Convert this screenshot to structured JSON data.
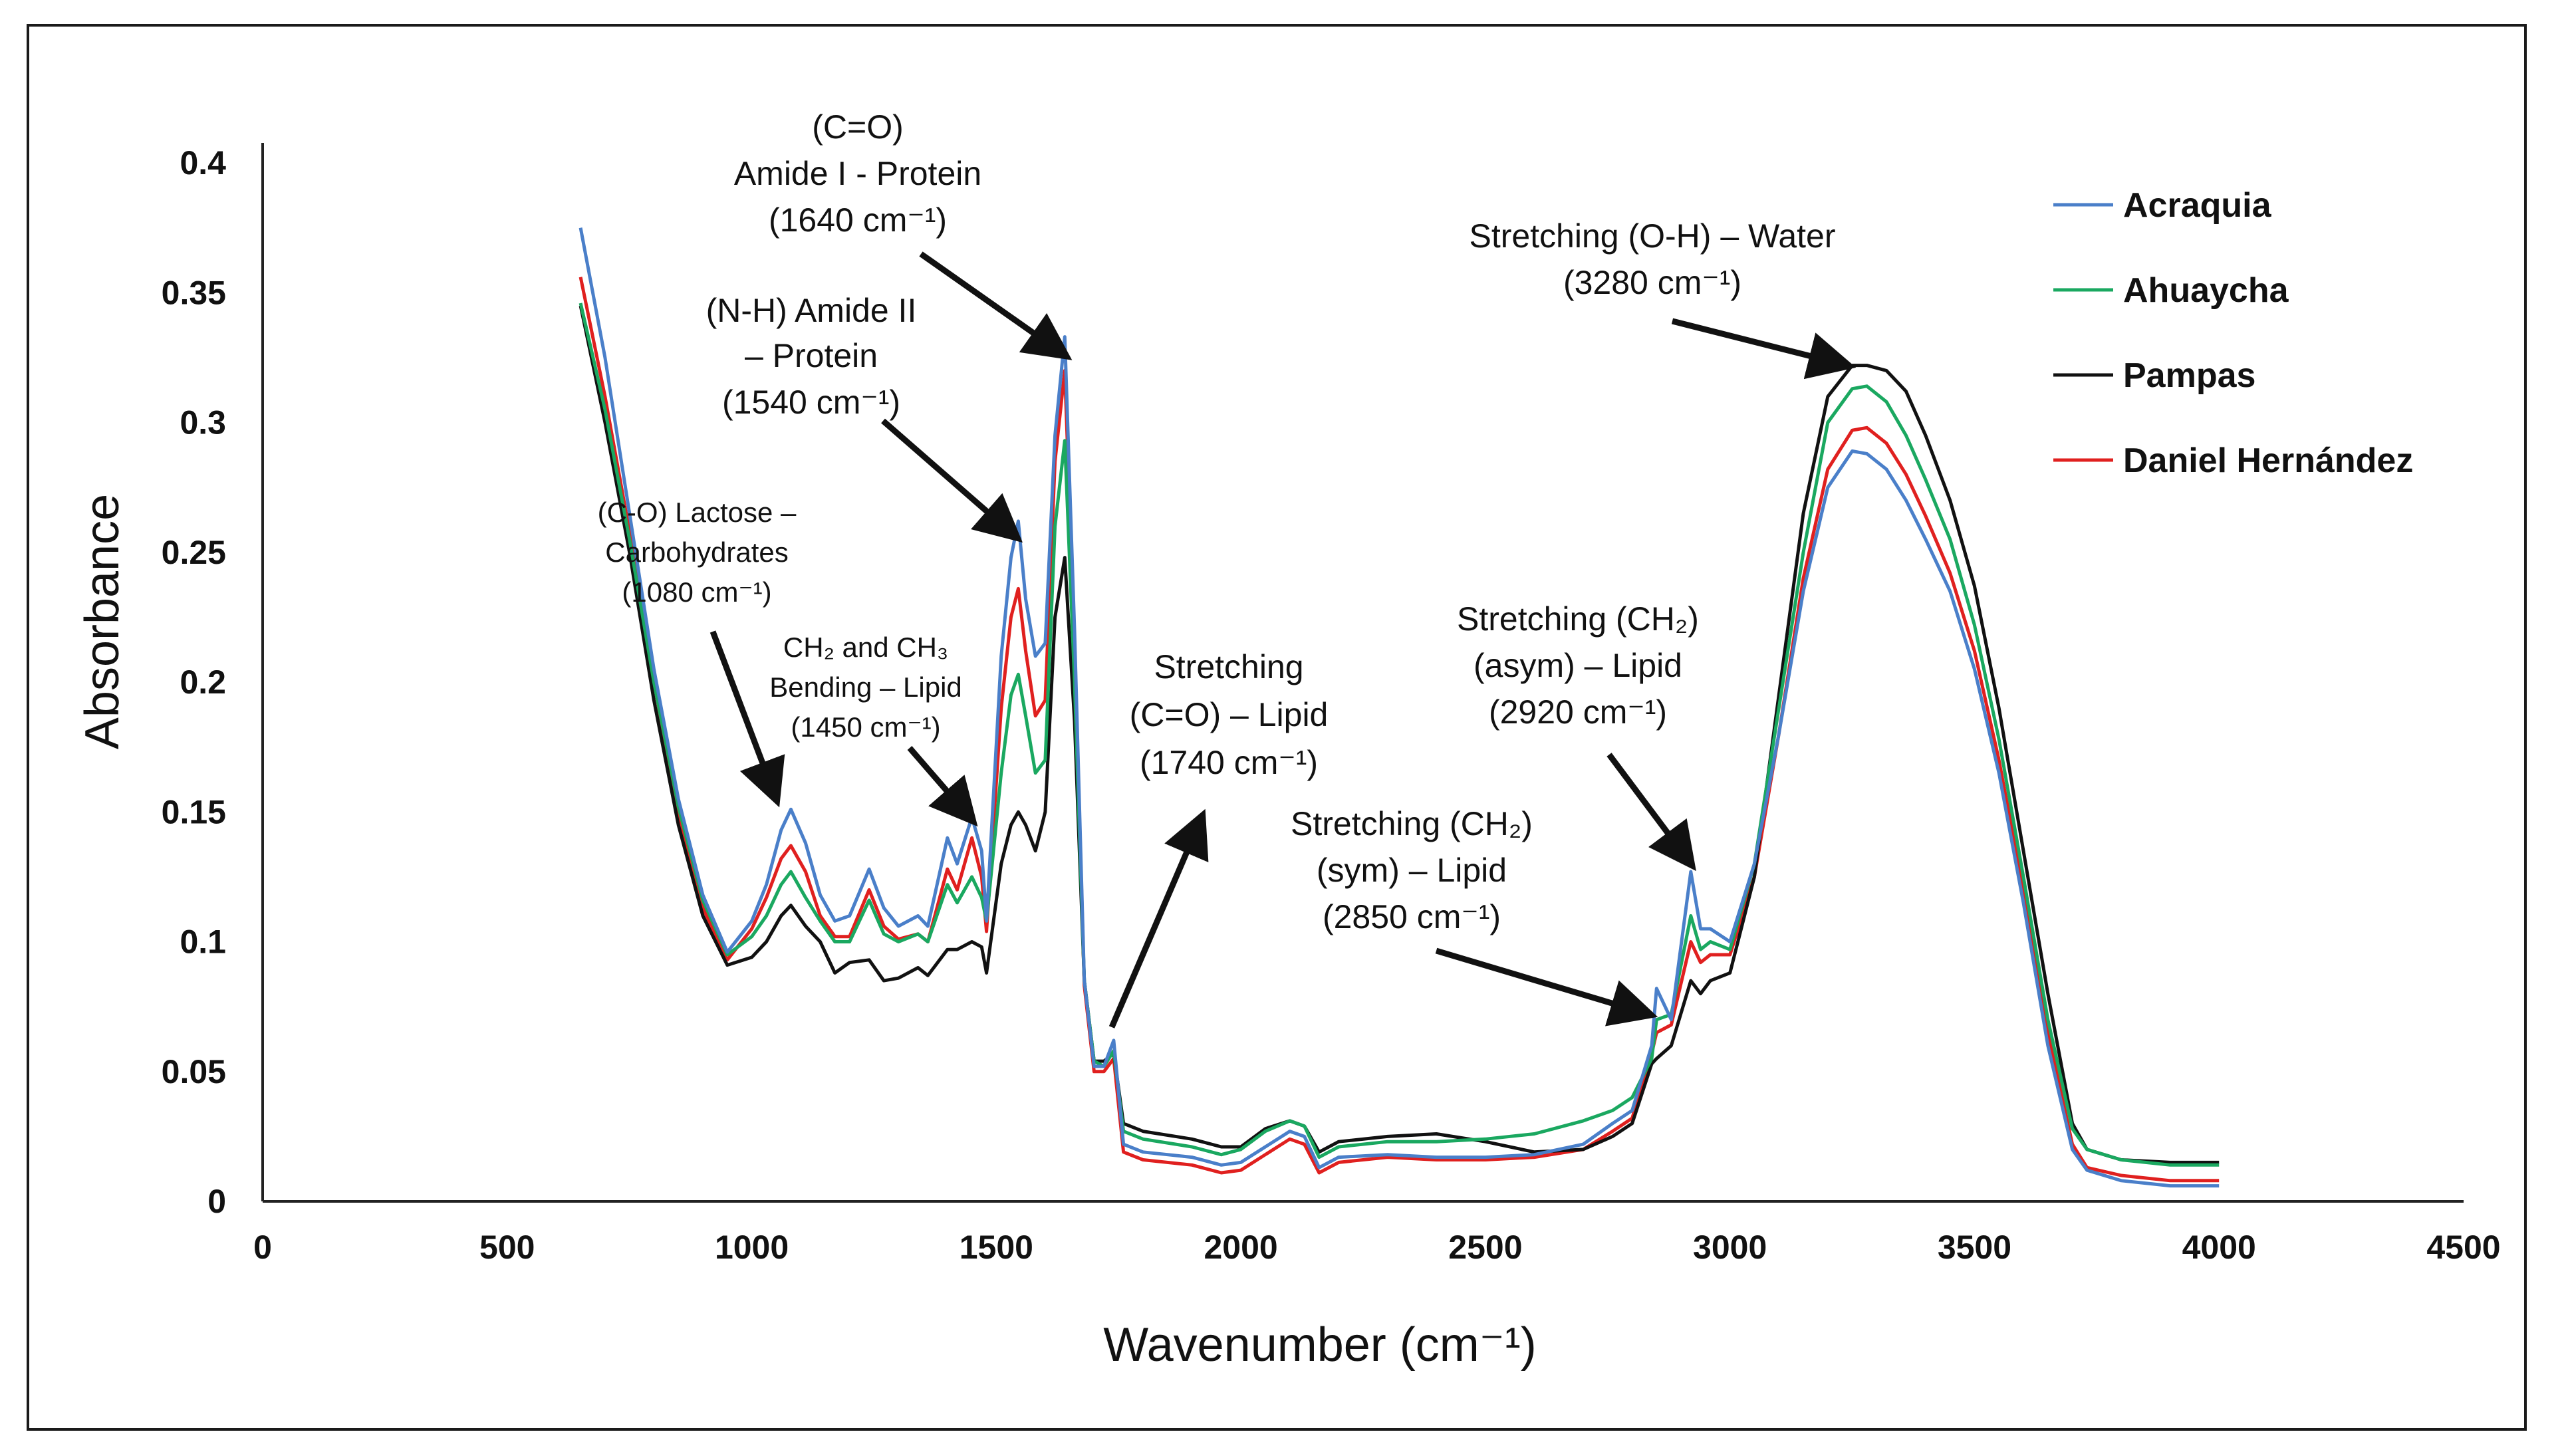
{
  "chart_data": {
    "type": "line",
    "title": "",
    "xlabel": "Wavenumber  (cm⁻¹)",
    "ylabel": "Absorbance",
    "xlim": [
      0,
      4500
    ],
    "ylim": [
      0,
      0.4
    ],
    "x_ticks": [
      "0",
      "500",
      "1000",
      "1500",
      "2000",
      "2500",
      "3000",
      "3500",
      "4000",
      "4500"
    ],
    "y_ticks": [
      "0",
      "0.05",
      "0.1",
      "0.15",
      "0.2",
      "0.25",
      "0.3",
      "0.35",
      "0.4"
    ],
    "grid": false,
    "legend_position": "top-right",
    "x": [
      650,
      700,
      750,
      800,
      850,
      900,
      950,
      1000,
      1030,
      1060,
      1080,
      1110,
      1140,
      1170,
      1200,
      1240,
      1270,
      1300,
      1340,
      1360,
      1400,
      1420,
      1450,
      1470,
      1480,
      1510,
      1530,
      1545,
      1560,
      1580,
      1600,
      1620,
      1640,
      1660,
      1680,
      1700,
      1720,
      1740,
      1760,
      1800,
      1900,
      1960,
      2000,
      2050,
      2100,
      2130,
      2160,
      2200,
      2300,
      2400,
      2500,
      2600,
      2700,
      2760,
      2800,
      2840,
      2850,
      2880,
      2920,
      2940,
      2960,
      3000,
      3050,
      3100,
      3150,
      3200,
      3250,
      3280,
      3320,
      3360,
      3400,
      3450,
      3500,
      3550,
      3600,
      3650,
      3700,
      3730,
      3800,
      3900,
      4000
    ],
    "series": [
      {
        "name": "Acraquia",
        "color": "#4a7fc9",
        "values": [
          0.375,
          0.325,
          0.265,
          0.205,
          0.155,
          0.118,
          0.096,
          0.108,
          0.122,
          0.143,
          0.151,
          0.138,
          0.118,
          0.108,
          0.11,
          0.128,
          0.113,
          0.106,
          0.11,
          0.106,
          0.14,
          0.13,
          0.148,
          0.135,
          0.108,
          0.21,
          0.248,
          0.262,
          0.232,
          0.21,
          0.215,
          0.295,
          0.333,
          0.22,
          0.085,
          0.052,
          0.052,
          0.062,
          0.022,
          0.019,
          0.017,
          0.014,
          0.015,
          0.021,
          0.027,
          0.025,
          0.013,
          0.017,
          0.018,
          0.017,
          0.017,
          0.018,
          0.022,
          0.03,
          0.035,
          0.06,
          0.082,
          0.07,
          0.127,
          0.105,
          0.105,
          0.1,
          0.13,
          0.18,
          0.235,
          0.275,
          0.289,
          0.288,
          0.282,
          0.27,
          0.255,
          0.235,
          0.205,
          0.165,
          0.115,
          0.06,
          0.02,
          0.012,
          0.008,
          0.006,
          0.006
        ]
      },
      {
        "name": "Ahuaycha",
        "color": "#1aa860",
        "values": [
          0.346,
          0.305,
          0.255,
          0.2,
          0.152,
          0.116,
          0.095,
          0.102,
          0.11,
          0.122,
          0.127,
          0.117,
          0.108,
          0.1,
          0.1,
          0.116,
          0.103,
          0.1,
          0.103,
          0.1,
          0.122,
          0.115,
          0.125,
          0.117,
          0.108,
          0.165,
          0.195,
          0.203,
          0.187,
          0.165,
          0.17,
          0.26,
          0.293,
          0.2,
          0.085,
          0.054,
          0.052,
          0.058,
          0.027,
          0.024,
          0.021,
          0.018,
          0.02,
          0.027,
          0.031,
          0.029,
          0.017,
          0.021,
          0.023,
          0.023,
          0.024,
          0.026,
          0.031,
          0.035,
          0.04,
          0.055,
          0.07,
          0.072,
          0.11,
          0.097,
          0.1,
          0.097,
          0.13,
          0.19,
          0.25,
          0.3,
          0.313,
          0.314,
          0.308,
          0.295,
          0.278,
          0.255,
          0.222,
          0.178,
          0.125,
          0.07,
          0.028,
          0.02,
          0.016,
          0.014,
          0.014
        ]
      },
      {
        "name": "Pampas",
        "color": "#111111",
        "values": [
          0.345,
          0.3,
          0.25,
          0.193,
          0.145,
          0.11,
          0.091,
          0.094,
          0.1,
          0.11,
          0.114,
          0.106,
          0.1,
          0.088,
          0.092,
          0.093,
          0.085,
          0.086,
          0.09,
          0.087,
          0.097,
          0.097,
          0.1,
          0.098,
          0.088,
          0.13,
          0.145,
          0.15,
          0.145,
          0.135,
          0.15,
          0.225,
          0.248,
          0.185,
          0.085,
          0.054,
          0.054,
          0.057,
          0.03,
          0.027,
          0.024,
          0.021,
          0.021,
          0.028,
          0.031,
          0.029,
          0.019,
          0.023,
          0.025,
          0.026,
          0.023,
          0.019,
          0.02,
          0.025,
          0.03,
          0.053,
          0.055,
          0.06,
          0.085,
          0.08,
          0.085,
          0.088,
          0.125,
          0.195,
          0.265,
          0.31,
          0.322,
          0.322,
          0.32,
          0.312,
          0.295,
          0.27,
          0.237,
          0.19,
          0.135,
          0.08,
          0.03,
          0.02,
          0.016,
          0.015,
          0.015
        ]
      },
      {
        "name": "Daniel Hernández",
        "color": "#e0201f",
        "values": [
          0.356,
          0.31,
          0.258,
          0.2,
          0.15,
          0.113,
          0.093,
          0.105,
          0.117,
          0.132,
          0.137,
          0.127,
          0.11,
          0.102,
          0.102,
          0.12,
          0.106,
          0.101,
          0.103,
          0.1,
          0.128,
          0.12,
          0.14,
          0.125,
          0.104,
          0.19,
          0.225,
          0.236,
          0.212,
          0.187,
          0.193,
          0.285,
          0.32,
          0.215,
          0.083,
          0.05,
          0.05,
          0.055,
          0.019,
          0.016,
          0.014,
          0.011,
          0.012,
          0.018,
          0.024,
          0.022,
          0.011,
          0.015,
          0.017,
          0.016,
          0.016,
          0.017,
          0.02,
          0.027,
          0.032,
          0.057,
          0.065,
          0.068,
          0.1,
          0.092,
          0.095,
          0.095,
          0.125,
          0.18,
          0.24,
          0.282,
          0.297,
          0.298,
          0.292,
          0.28,
          0.264,
          0.242,
          0.212,
          0.17,
          0.12,
          0.065,
          0.022,
          0.013,
          0.01,
          0.008,
          0.008
        ]
      }
    ],
    "annotations": [
      {
        "id": "a1640",
        "lines": [
          "(C=O)",
          "Amide I -  Protein",
          "(1640 cm⁻¹)"
        ],
        "target_x": 1640,
        "target_y": 0.326
      },
      {
        "id": "a1540",
        "lines": [
          "(N-H) Amide II",
          "– Protein",
          "(1540 cm⁻¹)"
        ],
        "target_x": 1540,
        "target_y": 0.256
      },
      {
        "id": "a1080",
        "lines": [
          "(C-O) Lactose –",
          "Carbohydrates",
          "(1080 cm⁻¹)"
        ],
        "target_x": 1050,
        "target_y": 0.155
      },
      {
        "id": "a1450",
        "lines": [
          "CH₂ and CH₃",
          "Bending – Lipid",
          "(1450 cm⁻¹)"
        ],
        "target_x": 1450,
        "target_y": 0.147
      },
      {
        "id": "a1740",
        "lines": [
          "Stretching",
          "(C=O) – Lipid",
          "(1740 cm⁻¹)"
        ],
        "target_x": 1920,
        "target_y": 0.148
      },
      {
        "id": "a2850",
        "lines": [
          "Stretching (CH₂)",
          "(sym) – Lipid",
          "(2850 cm⁻¹)"
        ],
        "target_x": 2835,
        "target_y": 0.072
      },
      {
        "id": "a2920",
        "lines": [
          "Stretching (CH₂)",
          "(asym) – Lipid",
          "(2920 cm⁻¹)"
        ],
        "target_x": 2920,
        "target_y": 0.13
      },
      {
        "id": "a3280",
        "lines": [
          "Stretching (O-H) – Water",
          "(3280 cm⁻¹)"
        ],
        "target_x": 3240,
        "target_y": 0.322
      }
    ]
  }
}
